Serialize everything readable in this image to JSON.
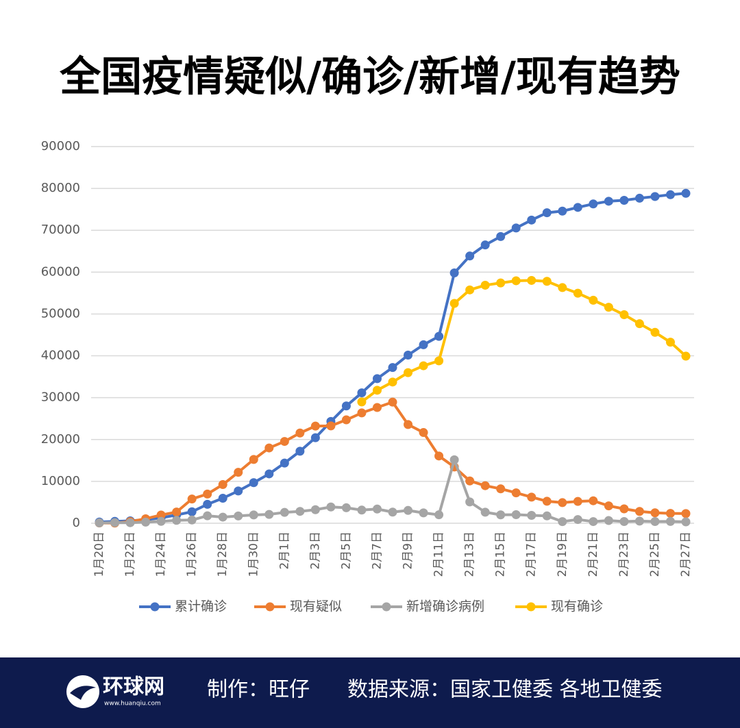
{
  "chart_data": {
    "type": "line",
    "title": "全国疫情疑似/确诊/新增/现有趋势",
    "categories": [
      "1月20日",
      null,
      "1月22日",
      null,
      "1月24日",
      null,
      "1月26日",
      null,
      "1月28日",
      null,
      "1月30日",
      null,
      "2月1日",
      null,
      "2月3日",
      null,
      "2月5日",
      null,
      "2月7日",
      null,
      "2月9日",
      null,
      "2月11日",
      null,
      "2月13日",
      null,
      "2月15日",
      null,
      "2月17日",
      null,
      "2月19日",
      null,
      "2月21日",
      null,
      "2月23日",
      null,
      "2月25日",
      null,
      "2月27日"
    ],
    "series": [
      {
        "name": "累计确诊",
        "color": "#4472c4",
        "values": [
          291,
          440,
          571,
          830,
          1287,
          1975,
          2744,
          4515,
          5974,
          7711,
          9692,
          11791,
          14380,
          17205,
          20438,
          24324,
          28018,
          31161,
          34546,
          37198,
          40171,
          42638,
          44653,
          59804,
          63851,
          66492,
          68500,
          70548,
          72436,
          74185,
          74576,
          75465,
          76288,
          76936,
          77150,
          77658,
          78064,
          78497,
          78824
        ]
      },
      {
        "name": "现有疑似",
        "color": "#ed7d31",
        "values": [
          54,
          37,
          393,
          1072,
          1965,
          2684,
          5794,
          6973,
          9239,
          12167,
          15238,
          17988,
          19544,
          21558,
          23214,
          23260,
          24702,
          26359,
          27657,
          28942,
          23589,
          21675,
          16067,
          13435,
          10109,
          8969,
          8228,
          7264,
          6242,
          5248,
          4922,
          5206,
          5365,
          4148,
          3434,
          2824,
          2491,
          2358,
          2308
        ]
      },
      {
        "name": "新增确诊病例",
        "color": "#a5a5a5",
        "values": [
          77,
          149,
          131,
          259,
          444,
          688,
          769,
          1771,
          1459,
          1737,
          1982,
          2102,
          2590,
          2829,
          3235,
          3887,
          3694,
          3143,
          3399,
          2656,
          3062,
          2478,
          2015,
          15152,
          5090,
          2641,
          2009,
          2048,
          1886,
          1749,
          394,
          889,
          397,
          648,
          409,
          508,
          406,
          433,
          327
        ]
      },
      {
        "name": "现有确诊",
        "color": "#ffc000",
        "values": [
          null,
          null,
          null,
          null,
          null,
          null,
          null,
          null,
          null,
          null,
          null,
          null,
          null,
          null,
          null,
          null,
          null,
          28985,
          31774,
          33738,
          35982,
          37626,
          38800,
          52526,
          55748,
          56873,
          57416,
          57934,
          58016,
          57805,
          56303,
          54965,
          53284,
          51606,
          49824,
          47672,
          45604,
          43258,
          39919
        ]
      }
    ],
    "ylim": [
      0,
      90000
    ],
    "yticks": [
      0,
      10000,
      20000,
      30000,
      40000,
      50000,
      60000,
      70000,
      80000,
      90000
    ],
    "grid": true,
    "legend": "bottom"
  },
  "footer": {
    "logo": "环球网",
    "site": "www.huanqiu.com",
    "author": "制作：旺仔",
    "source": "数据来源：国家卫健委 各地卫健委"
  }
}
